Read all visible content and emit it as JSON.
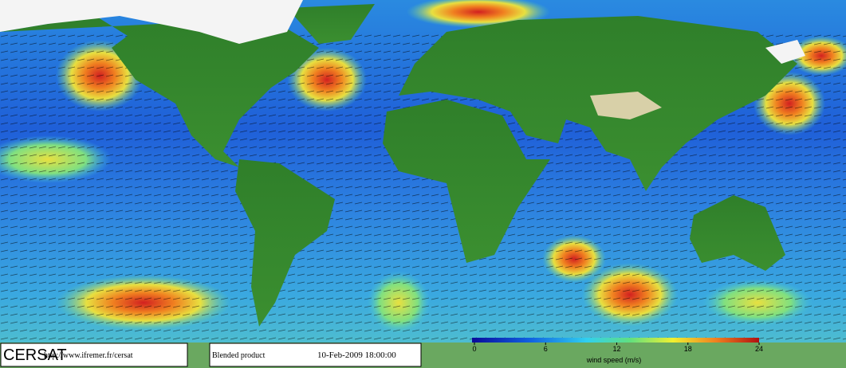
{
  "footer": {
    "logo": "CERSAT",
    "url": "http://www.ifremer.fr/cersat",
    "product": "Blended product",
    "timestamp": "10-Feb-2009 18:00:00"
  },
  "colorbar": {
    "label": "wind speed (m/s)",
    "range": [
      0,
      24
    ],
    "ticks": [
      0,
      6,
      12,
      18,
      24
    ]
  }
}
